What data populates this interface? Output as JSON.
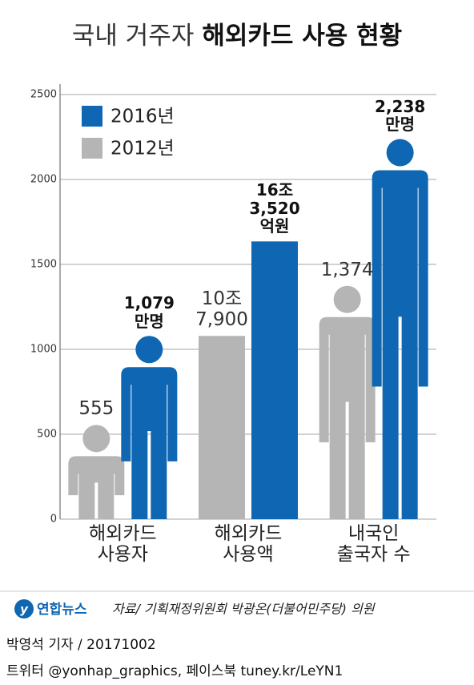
{
  "chart_data": {
    "type": "bar",
    "title": [
      "국내 거주자",
      "해외카드 사용 현황"
    ],
    "categories": [
      "해외카드\n사용자",
      "해외카드\n사용액",
      "내국인\n출국자 수"
    ],
    "mark_shapes": [
      "person",
      "bar",
      "person"
    ],
    "series": [
      {
        "name": "2012년",
        "color": "#b5b5b5",
        "values": [
          555,
          1079,
          1374
        ],
        "value_labels": [
          "555",
          "10조\n7,900",
          "1,374"
        ]
      },
      {
        "name": "2016년",
        "color": "#0f66b3",
        "values": [
          1079,
          1635.2,
          2238
        ],
        "value_labels": [
          "1,079\n만명",
          "16조\n3,520\n억원",
          "2,238\n만명"
        ]
      }
    ],
    "ylim": [
      0,
      2500
    ],
    "yticks": [
      0,
      500,
      1000,
      1500,
      2000,
      2500
    ],
    "grid": true,
    "legend": "top-left"
  },
  "footer": {
    "logo": "연합뉴스",
    "source": "자료/ 기획재정위원회 박광온(더불어민주당) 의원",
    "byline": "박영석 기자 / 20171002",
    "social": "트위터 @yonhap_graphics, 페이스북 tuney.kr/LeYN1"
  }
}
